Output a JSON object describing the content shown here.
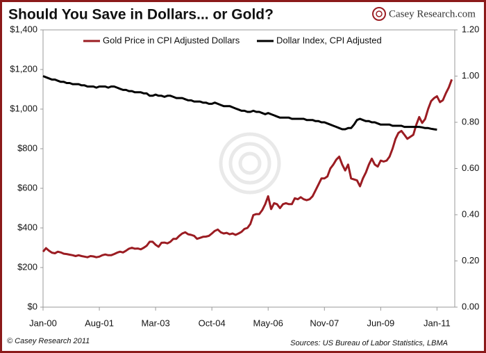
{
  "header": {
    "title": "Should You Save in Dollars... or Gold?",
    "logo": "Casey Research.com"
  },
  "footer": {
    "copyright": "© Casey Research 2011",
    "sources": "Sources: US Bureau of Labor Statistics, LBMA"
  },
  "chart_data": {
    "type": "line",
    "legend": "upper center",
    "categories": [
      "Jan-00",
      null,
      null,
      null,
      null,
      null,
      null,
      null,
      null,
      null,
      null,
      null,
      null,
      null,
      null,
      null,
      null,
      null,
      null,
      "Aug-01",
      null,
      null,
      null,
      null,
      null,
      null,
      null,
      null,
      null,
      null,
      null,
      null,
      null,
      null,
      null,
      null,
      null,
      null,
      "Mar-03",
      null,
      null,
      null,
      null,
      null,
      null,
      null,
      null,
      null,
      null,
      null,
      null,
      null,
      null,
      null,
      null,
      null,
      null,
      "Oct-04",
      null,
      null,
      null,
      null,
      null,
      null,
      null,
      null,
      null,
      null,
      null,
      null,
      null,
      null,
      null,
      null,
      null,
      null,
      "May-06",
      null,
      null,
      null,
      null,
      null,
      null,
      null,
      null,
      null,
      null,
      null,
      null,
      null,
      null,
      null,
      null,
      null,
      null,
      "Nov-07",
      null,
      null,
      null,
      null,
      null,
      null,
      null,
      null,
      null,
      null,
      null,
      null,
      null,
      null,
      null,
      null,
      null,
      null,
      "Jun-09",
      null,
      null,
      null,
      null,
      null,
      null,
      null,
      null,
      null,
      null,
      null,
      null,
      null,
      null,
      null,
      null,
      null,
      null,
      "Jan-11",
      null,
      null,
      null,
      null,
      null
    ],
    "series": [
      {
        "name": "Gold Price in CPI Adjusted Dollars",
        "color": "#9b1c22",
        "values": [
          280,
          298,
          285,
          275,
          272,
          280,
          276,
          270,
          268,
          265,
          262,
          258,
          262,
          258,
          255,
          252,
          258,
          256,
          252,
          255,
          262,
          266,
          262,
          262,
          268,
          275,
          280,
          276,
          285,
          295,
          300,
          295,
          296,
          292,
          300,
          310,
          330,
          330,
          315,
          305,
          325,
          326,
          322,
          330,
          345,
          345,
          360,
          372,
          378,
          368,
          365,
          360,
          345,
          350,
          355,
          356,
          360,
          372,
          385,
          392,
          378,
          372,
          375,
          368,
          372,
          365,
          372,
          380,
          395,
          400,
          420,
          465,
          470,
          470,
          490,
          520,
          560,
          495,
          525,
          520,
          500,
          520,
          525,
          520,
          520,
          550,
          545,
          555,
          545,
          540,
          545,
          560,
          590,
          620,
          650,
          650,
          660,
          700,
          720,
          745,
          760,
          720,
          690,
          720,
          650,
          645,
          640,
          610,
          650,
          680,
          720,
          750,
          720,
          710,
          740,
          735,
          740,
          760,
          800,
          850,
          880,
          890,
          870,
          850,
          860,
          870,
          920,
          960,
          930,
          950,
          1000,
          1040,
          1055,
          1065,
          1035,
          1045,
          1080,
          1110,
          1150
        ]
      },
      {
        "name": "Dollar Index, CPI Adjusted",
        "color": "#000000",
        "axis": "y2",
        "values": [
          1.0,
          0.995,
          0.99,
          0.985,
          0.985,
          0.98,
          0.975,
          0.975,
          0.97,
          0.97,
          0.965,
          0.965,
          0.965,
          0.96,
          0.96,
          0.955,
          0.955,
          0.955,
          0.95,
          0.955,
          0.955,
          0.955,
          0.95,
          0.955,
          0.955,
          0.95,
          0.945,
          0.94,
          0.94,
          0.935,
          0.935,
          0.93,
          0.93,
          0.93,
          0.925,
          0.925,
          0.915,
          0.915,
          0.92,
          0.915,
          0.915,
          0.91,
          0.915,
          0.915,
          0.91,
          0.905,
          0.905,
          0.905,
          0.9,
          0.895,
          0.895,
          0.89,
          0.89,
          0.89,
          0.885,
          0.885,
          0.88,
          0.88,
          0.885,
          0.88,
          0.875,
          0.87,
          0.87,
          0.87,
          0.865,
          0.86,
          0.855,
          0.85,
          0.85,
          0.845,
          0.845,
          0.85,
          0.845,
          0.845,
          0.84,
          0.835,
          0.84,
          0.835,
          0.83,
          0.825,
          0.82,
          0.82,
          0.82,
          0.82,
          0.815,
          0.815,
          0.815,
          0.815,
          0.815,
          0.81,
          0.81,
          0.81,
          0.805,
          0.805,
          0.8,
          0.8,
          0.795,
          0.79,
          0.785,
          0.78,
          0.775,
          0.77,
          0.77,
          0.775,
          0.775,
          0.79,
          0.81,
          0.815,
          0.81,
          0.805,
          0.805,
          0.8,
          0.8,
          0.795,
          0.79,
          0.79,
          0.79,
          0.79,
          0.785,
          0.785,
          0.785,
          0.785,
          0.78,
          0.78,
          0.78,
          0.78,
          0.78,
          0.78,
          0.778,
          0.775,
          0.775,
          0.772,
          0.77,
          0.768,
          null,
          null,
          null,
          null,
          null
        ]
      }
    ],
    "ylim": [
      0,
      1400
    ],
    "yticks": [
      {
        "value": 0,
        "label": "$0"
      },
      {
        "value": 200,
        "label": "$200"
      },
      {
        "value": 400,
        "label": "$400"
      },
      {
        "value": 600,
        "label": "$600"
      },
      {
        "value": 800,
        "label": "$800"
      },
      {
        "value": 1000,
        "label": "$1,000"
      },
      {
        "value": 1200,
        "label": "$1,200"
      },
      {
        "value": 1400,
        "label": "$1,400"
      }
    ],
    "y2lim": [
      0,
      1.2
    ],
    "y2ticks": [
      {
        "value": 0,
        "label": "0.00"
      },
      {
        "value": 0.2,
        "label": "0.20"
      },
      {
        "value": 0.4,
        "label": "0.40"
      },
      {
        "value": 0.6,
        "label": "0.60"
      },
      {
        "value": 0.8,
        "label": "0.80"
      },
      {
        "value": 1.0,
        "label": "1.00"
      },
      {
        "value": 1.2,
        "label": "1.20"
      }
    ]
  }
}
